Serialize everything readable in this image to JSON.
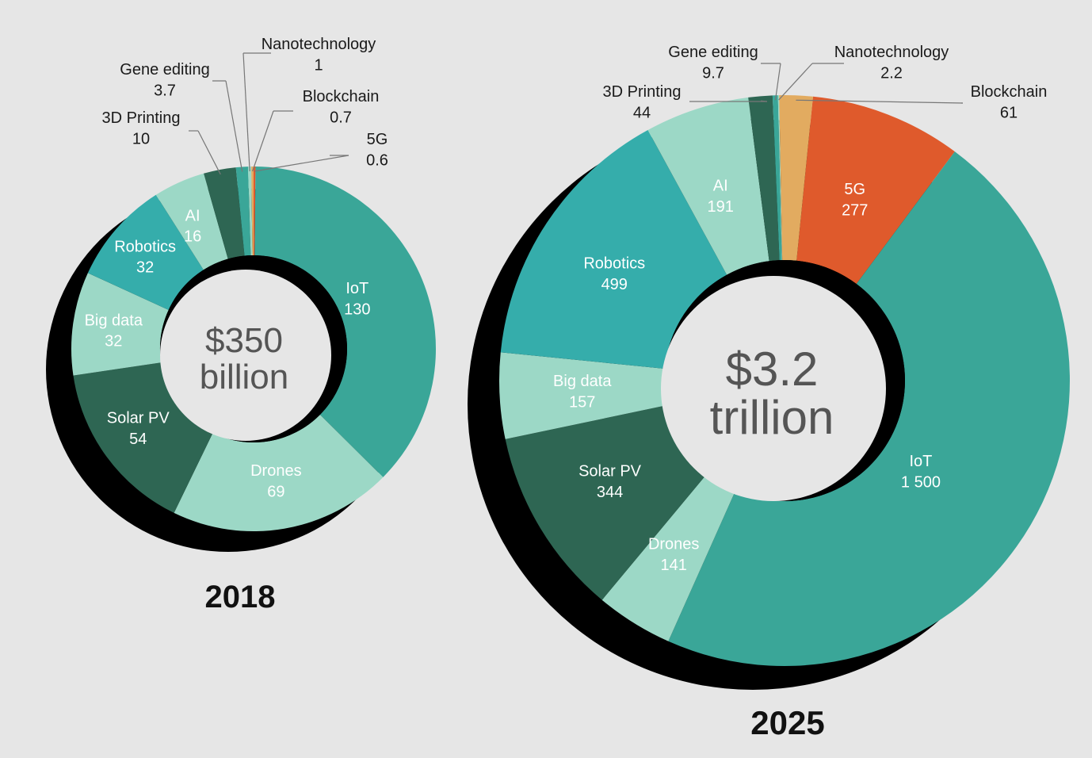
{
  "chart_data": [
    {
      "type": "pie",
      "year_label": "2018",
      "center_value": "$350",
      "center_unit": "billion",
      "slices": [
        {
          "name": "IoT",
          "value": 130,
          "value_label": "130",
          "color": "#3aa698"
        },
        {
          "name": "Drones",
          "value": 69,
          "value_label": "69",
          "color": "#9cd8c6"
        },
        {
          "name": "Solar PV",
          "value": 54,
          "value_label": "54",
          "color": "#2e6653"
        },
        {
          "name": "Big data",
          "value": 32,
          "value_label": "32",
          "color": "#9cd8c6"
        },
        {
          "name": "Robotics",
          "value": 32,
          "value_label": "32",
          "color": "#35adab"
        },
        {
          "name": "AI",
          "value": 16,
          "value_label": "16",
          "color": "#9cd8c6"
        },
        {
          "name": "3D Printing",
          "value": 10,
          "value_label": "10",
          "color": "#2e6653"
        },
        {
          "name": "Gene editing",
          "value": 3.7,
          "value_label": "3.7",
          "color": "#3aa698"
        },
        {
          "name": "Nanotechnology",
          "value": 1,
          "value_label": "1",
          "color": "#9cd8c6"
        },
        {
          "name": "Blockchain",
          "value": 0.7,
          "value_label": "0.7",
          "color": "#e2ab60"
        },
        {
          "name": "5G",
          "value": 0.6,
          "value_label": "0.6",
          "color": "#df5a2c"
        }
      ]
    },
    {
      "type": "pie",
      "year_label": "2025",
      "center_value": "$3.2",
      "center_unit": "trillion",
      "slices": [
        {
          "name": "IoT",
          "value": 1500,
          "value_label": "1 500",
          "color": "#3aa698"
        },
        {
          "name": "Drones",
          "value": 141,
          "value_label": "141",
          "color": "#9cd8c6"
        },
        {
          "name": "Solar PV",
          "value": 344,
          "value_label": "344",
          "color": "#2e6653"
        },
        {
          "name": "Big data",
          "value": 157,
          "value_label": "157",
          "color": "#9cd8c6"
        },
        {
          "name": "Robotics",
          "value": 499,
          "value_label": "499",
          "color": "#35adab"
        },
        {
          "name": "AI",
          "value": 191,
          "value_label": "191",
          "color": "#9cd8c6"
        },
        {
          "name": "3D Printing",
          "value": 44,
          "value_label": "44",
          "color": "#2e6653"
        },
        {
          "name": "Gene editing",
          "value": 9.7,
          "value_label": "9.7",
          "color": "#3aa698"
        },
        {
          "name": "Nanotechnology",
          "value": 2.2,
          "value_label": "2.2",
          "color": "#9cd8c6"
        },
        {
          "name": "Blockchain",
          "value": 61,
          "value_label": "61",
          "color": "#e2ab60"
        },
        {
          "name": "5G",
          "value": 277,
          "value_label": "277",
          "color": "#df5a2c"
        }
      ]
    }
  ]
}
